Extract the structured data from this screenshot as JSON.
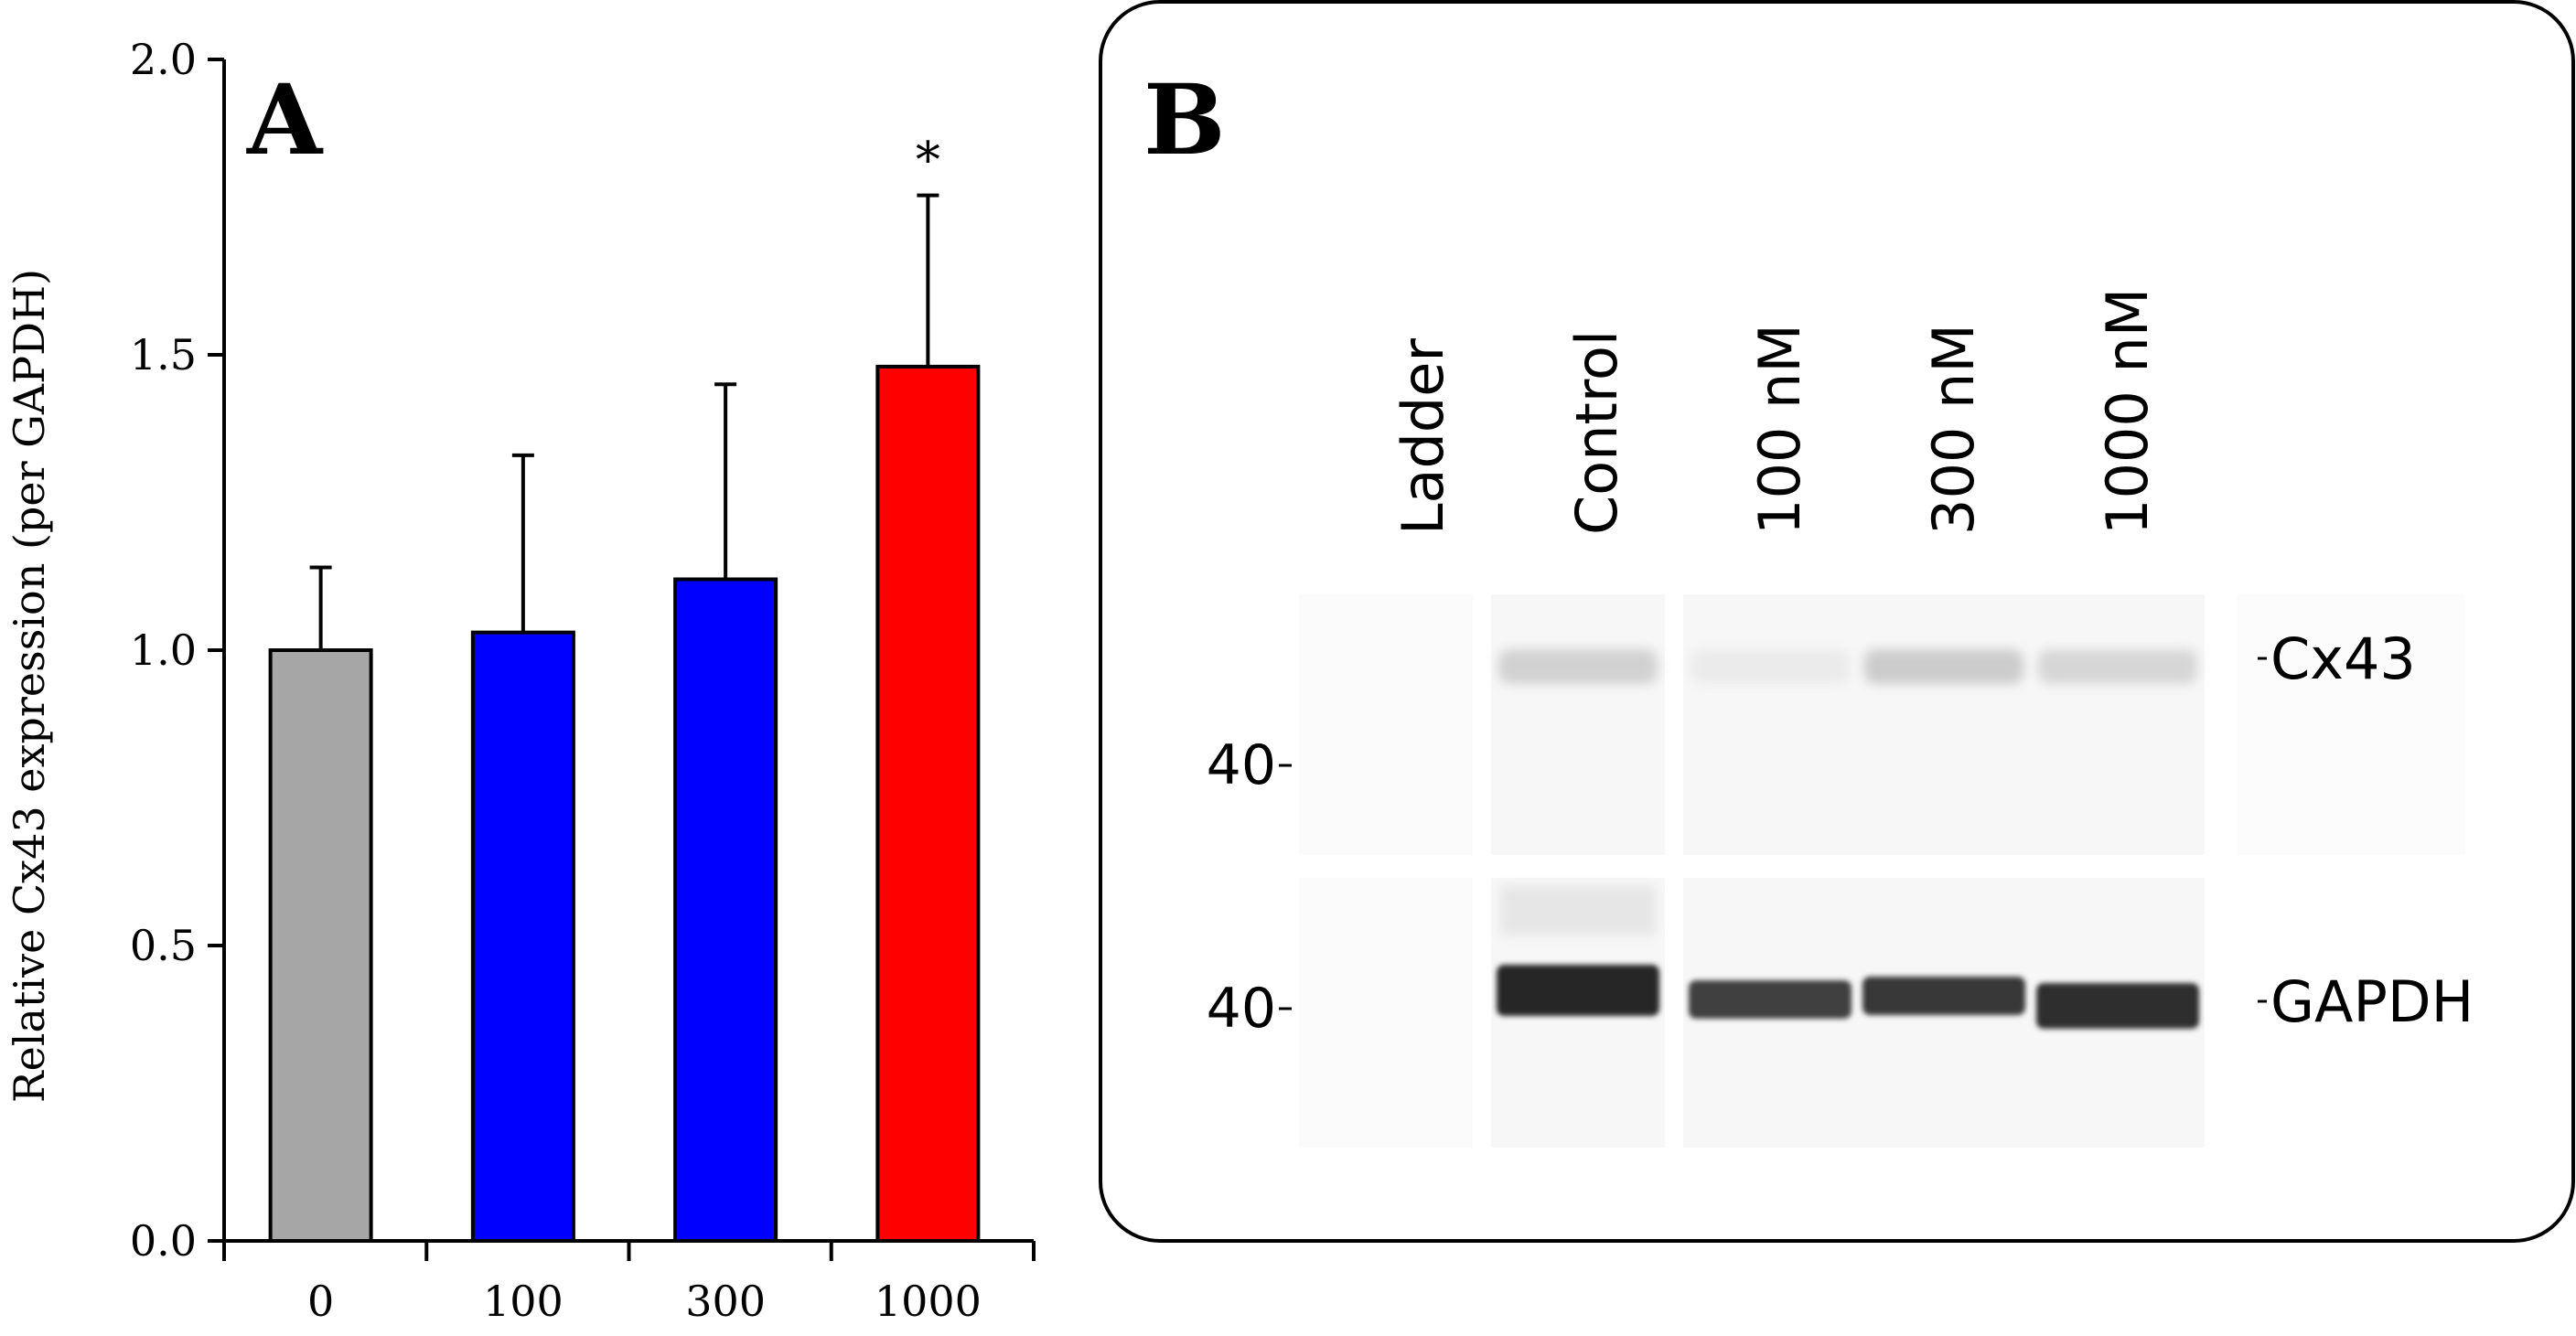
{
  "chart_data": [
    {
      "type": "bar",
      "panel_label": "A",
      "ylabel": "Relative Cx43 expression (per GAPDH)",
      "categories": [
        "0",
        "100",
        "300",
        "1000"
      ],
      "values": [
        1.0,
        1.03,
        1.12,
        1.48
      ],
      "error": [
        0.14,
        0.3,
        0.33,
        0.29
      ],
      "bar_colors": [
        "#a6a6a6",
        "#0000ff",
        "#0000ff",
        "#ff0000"
      ],
      "annotations": [
        {
          "category": "1000",
          "text": "*"
        }
      ],
      "ylim": [
        0,
        2.0
      ],
      "yticks": [
        "0.0",
        "0.5",
        "1.0",
        "1.5",
        "2.0"
      ],
      "grid": false
    },
    {
      "type": "blot",
      "panel_label": "B",
      "lanes": [
        "Ladder",
        "Control",
        "100 nM",
        "300 nM",
        "1000 nM"
      ],
      "band_labels": [
        "Cx43",
        "GAPDH"
      ],
      "marker_labels": [
        "40",
        "40"
      ],
      "cx43_intensity": [
        0,
        0.18,
        0.08,
        0.2,
        0.16
      ],
      "gapdh_intensity": [
        0,
        0.85,
        0.75,
        0.78,
        0.82
      ]
    }
  ]
}
